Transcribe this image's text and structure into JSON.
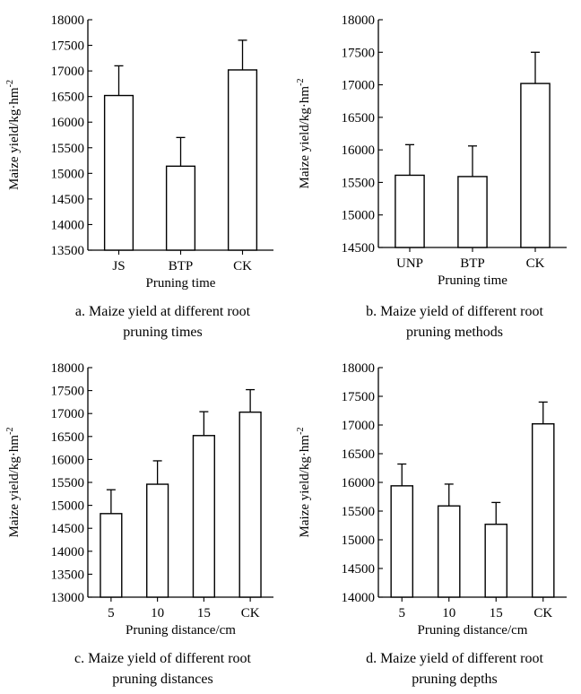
{
  "chart_data": [
    {
      "type": "bar",
      "categories": [
        "JS",
        "BTP",
        "CK"
      ],
      "values": [
        16520,
        15140,
        17020
      ],
      "errors": [
        580,
        560,
        580
      ],
      "ylim": [
        13500,
        18000
      ],
      "yticks": [
        13500,
        14000,
        14500,
        15000,
        15500,
        16000,
        16500,
        17000,
        17500,
        18000
      ],
      "ylabel": "Maize yield/kg·hm",
      "ylabel_sup": "-2",
      "xlabel": "Pruning time",
      "caption_lines": [
        "a. Maize yield at different root",
        "pruning times"
      ]
    },
    {
      "type": "bar",
      "categories": [
        "UNP",
        "BTP",
        "CK"
      ],
      "values": [
        15610,
        15590,
        17020
      ],
      "errors": [
        470,
        470,
        480
      ],
      "ylim": [
        14500,
        18000
      ],
      "yticks": [
        14500,
        15000,
        15500,
        16000,
        16500,
        17000,
        17500,
        18000
      ],
      "ylabel": "Maize yield/kg·hm",
      "ylabel_sup": "-2",
      "xlabel": "Pruning time",
      "caption_lines": [
        "b. Maize yield of different root",
        "pruning methods"
      ]
    },
    {
      "type": "bar",
      "categories": [
        "5",
        "10",
        "15",
        "CK"
      ],
      "values": [
        14820,
        15460,
        16520,
        17030
      ],
      "errors": [
        520,
        510,
        520,
        490
      ],
      "ylim": [
        13000,
        18000
      ],
      "yticks": [
        13000,
        13500,
        14000,
        14500,
        15000,
        15500,
        16000,
        16500,
        17000,
        17500,
        18000
      ],
      "ylabel": "Maize yield/kg·hm",
      "ylabel_sup": "-2",
      "xlabel": "Pruning distance/cm",
      "caption_lines": [
        "c. Maize yield of different root",
        "pruning distances"
      ]
    },
    {
      "type": "bar",
      "categories": [
        "5",
        "10",
        "15",
        "CK"
      ],
      "values": [
        15940,
        15590,
        15270,
        17020
      ],
      "errors": [
        380,
        380,
        380,
        380
      ],
      "ylim": [
        14000,
        18000
      ],
      "yticks": [
        14000,
        14500,
        15000,
        15500,
        16000,
        16500,
        17000,
        17500,
        18000
      ],
      "ylabel": "Maize yield/kg·hm",
      "ylabel_sup": "-2",
      "xlabel": "Pruning distance/cm",
      "caption_lines": [
        "d. Maize yield of different root",
        "pruning depths"
      ]
    }
  ]
}
